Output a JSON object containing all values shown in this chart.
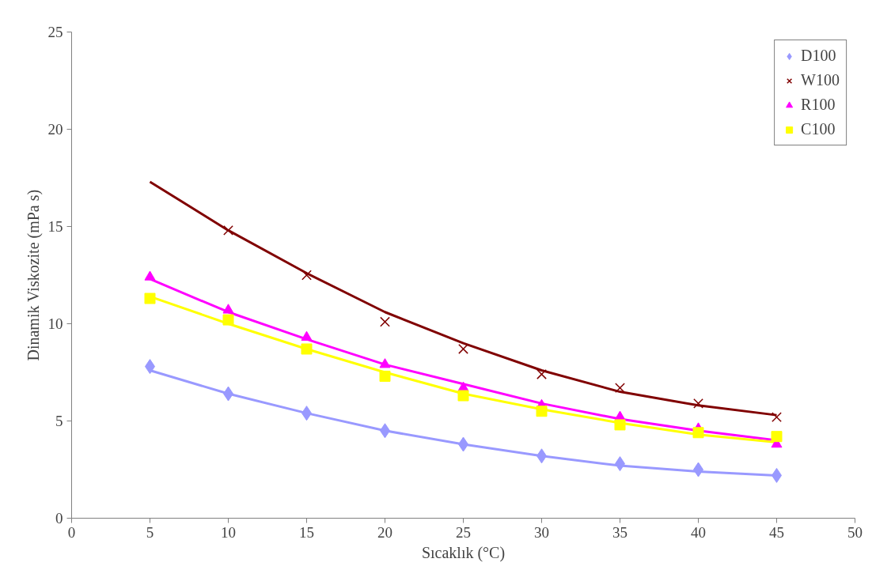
{
  "chart_data": {
    "type": "scatter",
    "xlabel": "Sıcaklık (°C)",
    "ylabel": "Dinamik Viskozite (mPa s)",
    "x": [
      5,
      10,
      15,
      20,
      25,
      30,
      35,
      40,
      45
    ],
    "xlim": [
      0,
      50
    ],
    "xticks": [
      0,
      5,
      10,
      15,
      20,
      25,
      30,
      35,
      40,
      45,
      50
    ],
    "ylim": [
      0,
      25
    ],
    "yticks": [
      0,
      5,
      10,
      15,
      20,
      25
    ],
    "grid": false,
    "legend": "top right",
    "series": [
      {
        "name": "D100",
        "color": "#9999ff",
        "marker": "diamond",
        "values": [
          7.8,
          6.4,
          5.4,
          4.5,
          3.8,
          3.2,
          2.8,
          2.5,
          2.2
        ]
      },
      {
        "name": "W100",
        "color": "#800000",
        "marker": "cross",
        "values": [
          null,
          14.8,
          12.5,
          10.1,
          8.7,
          7.4,
          6.7,
          5.9,
          5.2
        ]
      },
      {
        "name": "R100",
        "color": "#ff00ff",
        "marker": "triangle",
        "values": [
          12.4,
          10.7,
          9.3,
          7.9,
          6.7,
          5.8,
          5.2,
          4.6,
          3.8
        ]
      },
      {
        "name": "C100",
        "color": "#ffff00",
        "marker": "square",
        "values": [
          11.3,
          10.2,
          8.7,
          7.3,
          6.3,
          5.5,
          4.8,
          4.4,
          4.2
        ]
      },
      {
        "type": "line",
        "color": "#9999ff",
        "values": [
          7.6,
          6.4,
          5.4,
          4.5,
          3.8,
          3.2,
          2.7,
          2.4,
          2.2
        ]
      },
      {
        "type": "line",
        "color": "#800000",
        "values": [
          17.3,
          14.8,
          12.6,
          10.6,
          9.0,
          7.6,
          6.5,
          5.8,
          5.3
        ]
      },
      {
        "type": "line",
        "color": "#ff00ff",
        "values": [
          12.3,
          10.6,
          9.2,
          7.9,
          6.9,
          5.9,
          5.1,
          4.5,
          4.0
        ]
      },
      {
        "type": "line",
        "color": "#ffff00",
        "values": [
          11.4,
          10.0,
          8.7,
          7.5,
          6.4,
          5.6,
          4.9,
          4.3,
          3.9
        ]
      }
    ]
  }
}
